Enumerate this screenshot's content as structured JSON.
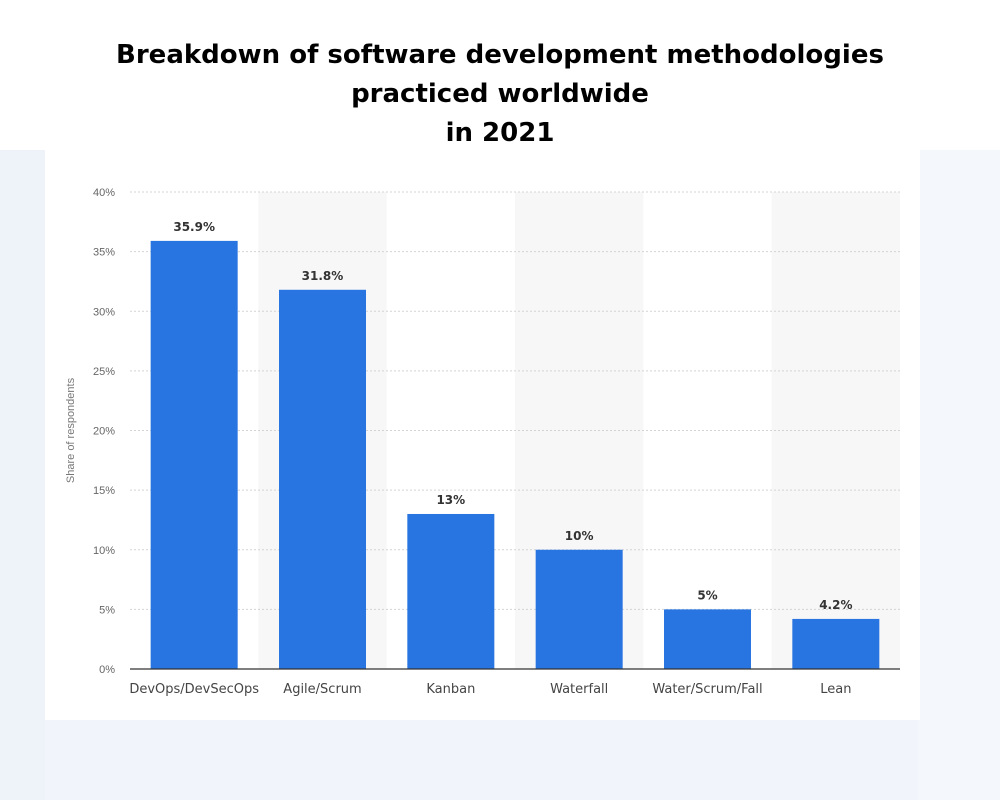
{
  "chart_data": {
    "type": "bar",
    "title_lines": [
      "Breakdown of software development methodologies",
      "practiced worldwide",
      "in 2021"
    ],
    "xlabel": "",
    "ylabel": "Share of respondents",
    "ylim": [
      0,
      40
    ],
    "yticks": [
      "0%",
      "5%",
      "10%",
      "15%",
      "20%",
      "25%",
      "30%",
      "35%",
      "40%"
    ],
    "grid": true,
    "bar_color": "#2874e0",
    "categories": [
      "DevOps/DevSecOps",
      "Agile/Scrum",
      "Kanban",
      "Waterfall",
      "Water/Scrum/Fall",
      "Lean"
    ],
    "values": [
      35.9,
      31.8,
      13,
      10,
      5,
      4.2
    ],
    "value_labels": [
      "35.9%",
      "31.8%",
      "13%",
      "10%",
      "5%",
      "4.2%"
    ]
  }
}
